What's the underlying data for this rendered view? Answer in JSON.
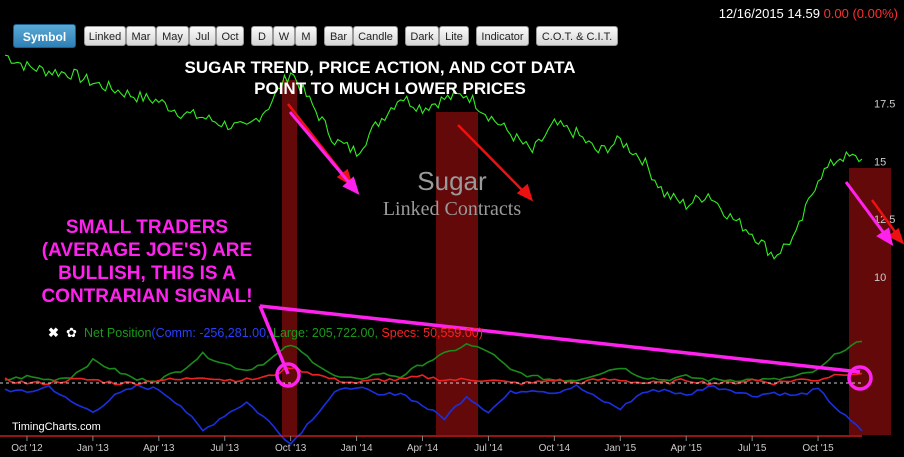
{
  "toolbar": {
    "symbol": "Symbol",
    "groups": [
      [
        "Linked",
        "Mar",
        "May",
        "Jul",
        "Oct"
      ],
      [
        "D",
        "W",
        "M"
      ],
      [
        "Bar",
        "Candle"
      ],
      [
        "Dark",
        "Lite"
      ],
      [
        "Indicator"
      ],
      [
        "C.O.T. & C.I.T."
      ]
    ]
  },
  "quote": {
    "datetime": "12/16/2015 14.59",
    "change": "0.00 (0.00%)"
  },
  "annotations": {
    "headline": [
      "SUGAR TREND, PRICE ACTION, AND COT DATA",
      "POINT TO MUCH LOWER PRICES"
    ],
    "small_traders": [
      "SMALL TRADERS",
      "(AVERAGE JOE'S) ARE",
      "BULLISH, THIS IS A",
      "CONTRARIAN SIGNAL!"
    ]
  },
  "watermark": {
    "name": "Sugar",
    "subtitle": "Linked Contracts"
  },
  "brand": "TimingCharts.com",
  "indicator": {
    "icons": [
      "close-icon",
      "gear-icon"
    ],
    "label": "Net Position",
    "comm": "(Comm: -256,281.00,",
    "large": " Large: 205,722.00,",
    "specs": " Specs: 50,559.00)"
  },
  "colors": {
    "price": "#33ee22",
    "annotation": "#ff22ee",
    "arrow": "#ee1111",
    "highlight": "#6e0a0a",
    "comm": "#1a2fe0",
    "large": "#1a8a1a",
    "specs": "#ee2222"
  },
  "chart_data": {
    "type": "line",
    "y_ticks": [
      "17.5",
      "15",
      "12.5",
      "10"
    ],
    "y_range": [
      9.6,
      19.6
    ],
    "x_ticks": [
      "Oct '12",
      "Jan '13",
      "Apr '13",
      "Jul '13",
      "Oct '13",
      "Jan '14",
      "Apr '14",
      "Jul '14",
      "Oct '14",
      "Jan '15",
      "Apr '15",
      "Jul '15",
      "Oct '15"
    ],
    "price_series": {
      "x": [
        "2012-09",
        "2012-10",
        "2012-11",
        "2012-12",
        "2013-01",
        "2013-02",
        "2013-03",
        "2013-04",
        "2013-05",
        "2013-06",
        "2013-07",
        "2013-08",
        "2013-09",
        "2013-10",
        "2013-11",
        "2013-12",
        "2014-01",
        "2014-02",
        "2014-03",
        "2014-04",
        "2014-05",
        "2014-06",
        "2014-07",
        "2014-08",
        "2014-09",
        "2014-10",
        "2014-11",
        "2014-12",
        "2015-01",
        "2015-02",
        "2015-03",
        "2015-04",
        "2015-05",
        "2015-06",
        "2015-07",
        "2015-08",
        "2015-09",
        "2015-10",
        "2015-11",
        "2015-12"
      ],
      "y": [
        19.6,
        19.1,
        18.9,
        18.8,
        18.4,
        18.1,
        17.8,
        17.6,
        17.1,
        16.9,
        16.6,
        16.4,
        17.4,
        18.9,
        17.4,
        15.9,
        15.4,
        16.7,
        17.8,
        17.3,
        17.7,
        17.9,
        17.0,
        16.2,
        15.4,
        16.6,
        16.2,
        15.4,
        15.9,
        15.1,
        13.6,
        13.1,
        13.6,
        12.6,
        11.9,
        10.9,
        11.8,
        14.3,
        15.2,
        15.1
      ]
    },
    "cot_series": [
      {
        "name": "Comm",
        "color": "#1a2fe0",
        "values": [
          -0.2,
          -0.3,
          -0.1,
          -0.6,
          -0.9,
          -0.4,
          -0.1,
          -0.2,
          -0.7,
          -1.5,
          -1.0,
          -0.6,
          -1.2,
          -1.9,
          -1.1,
          -0.3,
          -0.1,
          -0.4,
          -0.3,
          -0.7,
          -1.1,
          -0.4,
          -0.9,
          -0.3,
          -0.2,
          -0.3,
          -0.1,
          -0.5,
          -0.8,
          -0.3,
          -0.2,
          -0.4,
          -0.1,
          -0.2,
          -0.4,
          -0.3,
          -0.4,
          -0.2,
          -0.9,
          -1.5
        ]
      },
      {
        "name": "Large",
        "color": "#1a8a1a",
        "values": [
          0.1,
          0.2,
          0.1,
          0.2,
          0.7,
          0.4,
          0.1,
          0.1,
          0.4,
          0.9,
          0.6,
          0.4,
          0.7,
          1.2,
          0.7,
          0.2,
          0.1,
          0.3,
          0.2,
          0.6,
          0.9,
          1.2,
          1.0,
          0.4,
          0.2,
          0.1,
          0.1,
          0.3,
          0.5,
          0.2,
          0.1,
          0.2,
          0.1,
          0.1,
          0.1,
          0.1,
          0.2,
          0.4,
          1.0,
          1.3
        ]
      },
      {
        "name": "Specs",
        "color": "#ee2222",
        "values": [
          0.1,
          0.0,
          0.0,
          0.1,
          0.1,
          0.0,
          0.0,
          0.1,
          0.1,
          0.2,
          0.1,
          0.1,
          0.2,
          0.5,
          0.3,
          0.1,
          0.0,
          0.1,
          0.1,
          0.2,
          0.1,
          0.1,
          0.1,
          0.0,
          0.0,
          0.1,
          0.0,
          0.1,
          0.1,
          0.0,
          0.0,
          0.1,
          0.0,
          0.0,
          0.1,
          0.0,
          0.1,
          0.1,
          0.3,
          0.3
        ]
      }
    ]
  }
}
